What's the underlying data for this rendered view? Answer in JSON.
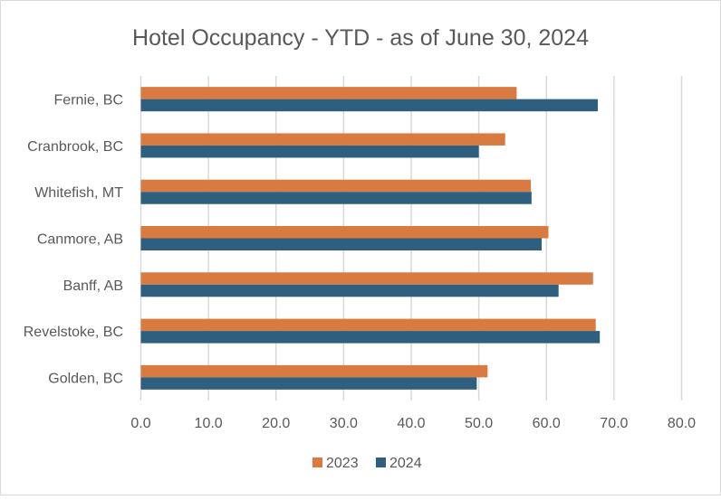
{
  "chart_data": {
    "type": "bar",
    "orientation": "horizontal",
    "title": "Hotel Occupancy - YTD - as of June 30, 2024",
    "categories": [
      "Fernie, BC",
      "Cranbrook, BC",
      "Whitefish, MT",
      "Canmore, AB",
      "Banff, AB",
      "Revelstoke, BC",
      "Golden, BC"
    ],
    "series": [
      {
        "name": "2023",
        "color": "#D97A41",
        "values": [
          55.6,
          53.9,
          57.7,
          60.3,
          66.9,
          67.3,
          51.3
        ]
      },
      {
        "name": "2024",
        "color": "#2E5F7F",
        "values": [
          67.6,
          50.0,
          57.8,
          59.3,
          61.8,
          67.9,
          49.7
        ]
      }
    ],
    "xlim": [
      0,
      80
    ],
    "xticks": [
      "0.0",
      "10.0",
      "20.0",
      "30.0",
      "40.0",
      "50.0",
      "60.0",
      "70.0",
      "80.0"
    ],
    "grid": true,
    "legend": "bottom"
  }
}
